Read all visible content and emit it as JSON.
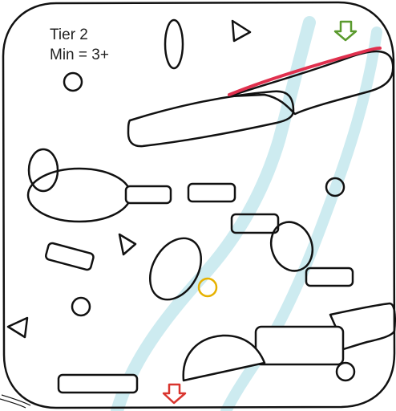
{
  "hud": {
    "tier_text": "Tier 2",
    "min_text": "Min = 3+"
  },
  "colors": {
    "outline": "#111111",
    "water": "#cdebf0",
    "red_stroke": "#e0304e",
    "entry_arrow": "#5a9a2e",
    "exit_arrow": "#d9352e",
    "ring": "#e6b100",
    "background": "#ffffff"
  },
  "icons": [
    "entry-arrow-icon",
    "exit-arrow-icon",
    "triangle-icon",
    "circle-icon",
    "ring-target-icon"
  ]
}
